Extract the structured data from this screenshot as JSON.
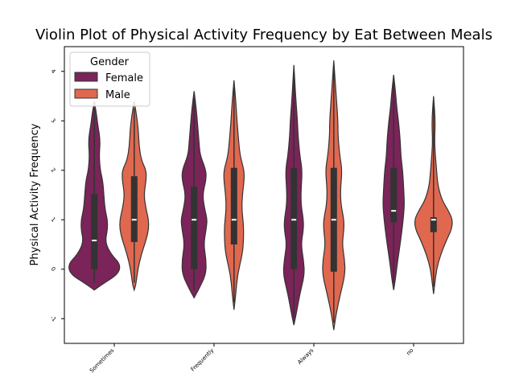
{
  "chart_data": {
    "type": "violin",
    "title": "Violin Plot of Physical Activity Frequency by Eat Between Meals",
    "xlabel": "",
    "ylabel": "Physical Activity Frequency",
    "categories": [
      "Sometimes",
      "Frequently",
      "Always",
      "no"
    ],
    "ylim": [
      -1.5,
      4.5
    ],
    "yticks": [
      "-1",
      "0",
      "1",
      "2",
      "3",
      "4"
    ],
    "legend": {
      "title": "Gender",
      "placement": "top-left",
      "entries": [
        {
          "name": "Female",
          "color": "#7b2459"
        },
        {
          "name": "Male",
          "color": "#e0684f"
        }
      ]
    },
    "series": [
      {
        "name": "Female",
        "color": "#7b2459",
        "violins": [
          {
            "category": "Sometimes",
            "range": [
              -0.42,
              3.4
            ],
            "profile": [
              [
                -0.42,
                0.0
              ],
              [
                -0.3,
                0.07
              ],
              [
                -0.1,
                0.2
              ],
              [
                0.1,
                0.22
              ],
              [
                0.3,
                0.14
              ],
              [
                0.55,
                0.09
              ],
              [
                0.8,
                0.11
              ],
              [
                1.0,
                0.11
              ],
              [
                1.2,
                0.09
              ],
              [
                1.5,
                0.08
              ],
              [
                1.8,
                0.07
              ],
              [
                2.0,
                0.05
              ],
              [
                2.3,
                0.04
              ],
              [
                2.6,
                0.05
              ],
              [
                2.9,
                0.03
              ],
              [
                3.1,
                0.02
              ],
              [
                3.4,
                0.0
              ]
            ],
            "q1": 0.0,
            "median": 0.58,
            "q3": 1.52
          },
          {
            "category": "Frequently",
            "range": [
              -0.58,
              3.6
            ],
            "profile": [
              [
                -0.58,
                0.0
              ],
              [
                -0.4,
                0.04
              ],
              [
                -0.1,
                0.1
              ],
              [
                0.2,
                0.1
              ],
              [
                0.5,
                0.08
              ],
              [
                0.8,
                0.1
              ],
              [
                1.0,
                0.11
              ],
              [
                1.2,
                0.09
              ],
              [
                1.5,
                0.07
              ],
              [
                1.8,
                0.1
              ],
              [
                2.0,
                0.1
              ],
              [
                2.3,
                0.05
              ],
              [
                2.6,
                0.04
              ],
              [
                2.9,
                0.03
              ],
              [
                3.2,
                0.02
              ],
              [
                3.6,
                0.0
              ]
            ],
            "q1": 0.0,
            "median": 1.0,
            "q3": 1.67
          },
          {
            "category": "Always",
            "range": [
              -1.13,
              4.13
            ],
            "profile": [
              [
                -1.13,
                0.0
              ],
              [
                -0.9,
                0.02
              ],
              [
                -0.5,
                0.05
              ],
              [
                -0.1,
                0.09
              ],
              [
                0.2,
                0.08
              ],
              [
                0.5,
                0.06
              ],
              [
                0.8,
                0.08
              ],
              [
                1.0,
                0.08
              ],
              [
                1.3,
                0.06
              ],
              [
                1.6,
                0.06
              ],
              [
                2.0,
                0.07
              ],
              [
                2.3,
                0.05
              ],
              [
                2.7,
                0.035
              ],
              [
                3.0,
                0.03
              ],
              [
                3.5,
                0.015
              ],
              [
                4.13,
                0.0
              ]
            ],
            "q1": 0.0,
            "median": 1.0,
            "q3": 2.05
          },
          {
            "category": "no",
            "range": [
              -0.42,
              3.93
            ],
            "profile": [
              [
                -0.42,
                0.0
              ],
              [
                -0.2,
                0.015
              ],
              [
                0.2,
                0.035
              ],
              [
                0.6,
                0.06
              ],
              [
                1.0,
                0.08
              ],
              [
                1.3,
                0.09
              ],
              [
                1.6,
                0.085
              ],
              [
                2.0,
                0.075
              ],
              [
                2.3,
                0.06
              ],
              [
                2.6,
                0.055
              ],
              [
                3.0,
                0.04
              ],
              [
                3.3,
                0.025
              ],
              [
                3.6,
                0.015
              ],
              [
                3.93,
                0.0
              ]
            ],
            "q1": 0.95,
            "median": 1.18,
            "q3": 2.05
          }
        ]
      },
      {
        "name": "Male",
        "color": "#e0684f",
        "violins": [
          {
            "category": "Sometimes",
            "range": [
              -0.42,
              3.4
            ],
            "profile": [
              [
                -0.42,
                0.0
              ],
              [
                -0.3,
                0.015
              ],
              [
                0.0,
                0.03
              ],
              [
                0.3,
                0.06
              ],
              [
                0.6,
                0.1
              ],
              [
                0.8,
                0.12
              ],
              [
                1.0,
                0.12
              ],
              [
                1.2,
                0.1
              ],
              [
                1.5,
                0.08
              ],
              [
                1.8,
                0.1
              ],
              [
                2.0,
                0.1
              ],
              [
                2.2,
                0.06
              ],
              [
                2.5,
                0.04
              ],
              [
                2.8,
                0.035
              ],
              [
                3.1,
                0.02
              ],
              [
                3.4,
                0.0
              ]
            ],
            "q1": 0.55,
            "median": 1.0,
            "q3": 1.88
          },
          {
            "category": "Frequently",
            "range": [
              -0.82,
              3.82
            ],
            "profile": [
              [
                -0.82,
                0.0
              ],
              [
                -0.5,
                0.015
              ],
              [
                -0.1,
                0.03
              ],
              [
                0.3,
                0.07
              ],
              [
                0.6,
                0.08
              ],
              [
                0.9,
                0.08
              ],
              [
                1.2,
                0.065
              ],
              [
                1.5,
                0.07
              ],
              [
                1.8,
                0.085
              ],
              [
                2.0,
                0.085
              ],
              [
                2.3,
                0.05
              ],
              [
                2.7,
                0.035
              ],
              [
                3.0,
                0.025
              ],
              [
                3.4,
                0.015
              ],
              [
                3.82,
                0.0
              ]
            ],
            "q1": 0.5,
            "median": 1.0,
            "q3": 2.05
          },
          {
            "category": "Always",
            "range": [
              -1.23,
              4.22
            ],
            "profile": [
              [
                -1.23,
                0.0
              ],
              [
                -0.9,
                0.02
              ],
              [
                -0.5,
                0.055
              ],
              [
                -0.1,
                0.095
              ],
              [
                0.2,
                0.09
              ],
              [
                0.5,
                0.07
              ],
              [
                0.8,
                0.085
              ],
              [
                1.0,
                0.085
              ],
              [
                1.3,
                0.06
              ],
              [
                1.6,
                0.055
              ],
              [
                2.0,
                0.07
              ],
              [
                2.3,
                0.05
              ],
              [
                2.7,
                0.035
              ],
              [
                3.0,
                0.035
              ],
              [
                3.5,
                0.02
              ],
              [
                4.22,
                0.0
              ]
            ],
            "q1": -0.05,
            "median": 1.0,
            "q3": 2.05
          },
          {
            "category": "no",
            "range": [
              -0.5,
              3.5
            ],
            "profile": [
              [
                -0.5,
                0.0
              ],
              [
                -0.3,
                0.01
              ],
              [
                0.0,
                0.025
              ],
              [
                0.3,
                0.06
              ],
              [
                0.6,
                0.11
              ],
              [
                0.8,
                0.15
              ],
              [
                1.0,
                0.16
              ],
              [
                1.2,
                0.12
              ],
              [
                1.4,
                0.07
              ],
              [
                1.7,
                0.035
              ],
              [
                2.0,
                0.025
              ],
              [
                2.3,
                0.015
              ],
              [
                2.6,
                0.008
              ],
              [
                3.0,
                0.015
              ],
              [
                3.5,
                0.0
              ]
            ],
            "q1": 0.75,
            "median": 1.0,
            "q3": 1.05
          }
        ]
      }
    ]
  }
}
